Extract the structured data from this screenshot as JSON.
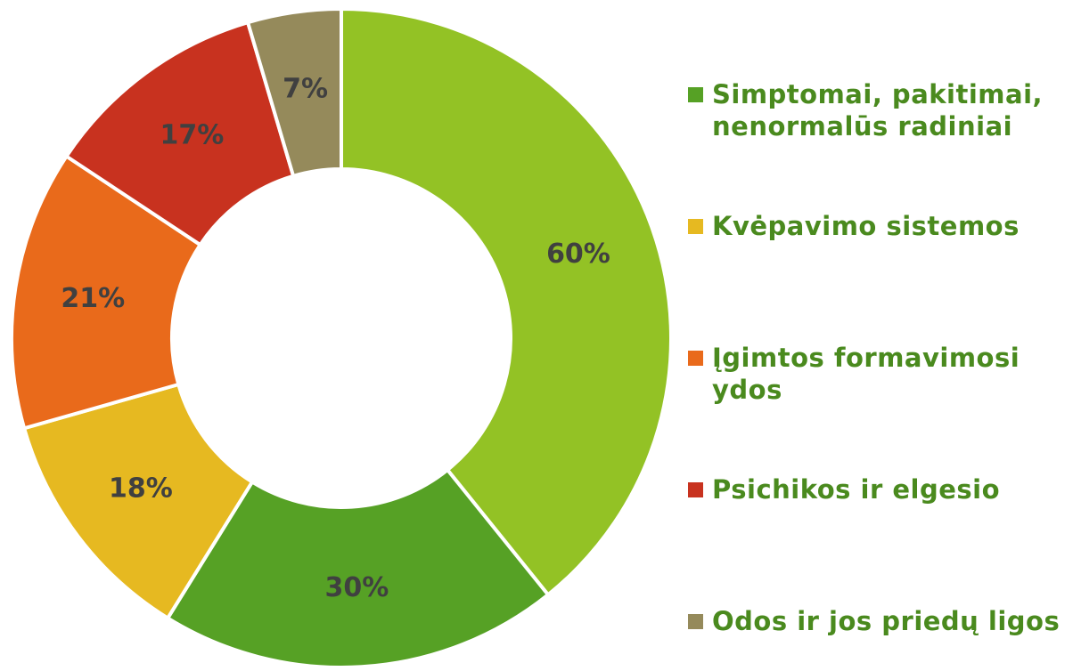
{
  "chart_data": {
    "type": "donut",
    "categories": [
      null,
      "Simptomai, pakitimai, nenormalūs radiniai",
      "Kvėpavimo sistemos",
      "Įgimtos formavimosi ydos",
      "Psichikos ir elgesio",
      "Odos ir jos priedų ligos"
    ],
    "values": [
      60,
      30,
      18,
      21,
      17,
      7
    ],
    "value_labels": [
      "60%",
      "30%",
      "18%",
      "21%",
      "17%",
      "7%"
    ],
    "colors": [
      "#93c225",
      "#56a125",
      "#e6b921",
      "#e96a1b",
      "#c8321f",
      "#958a5b"
    ]
  }
}
